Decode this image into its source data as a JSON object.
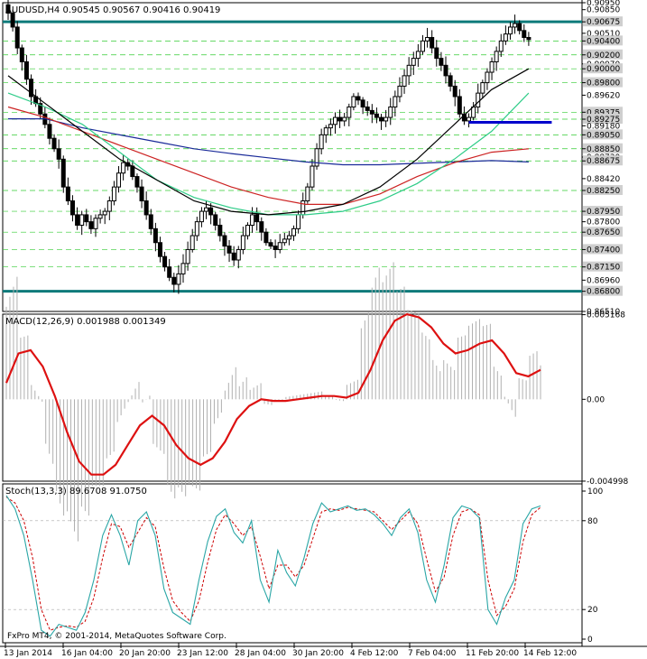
{
  "header": {
    "symbol": "AUDUSD,H4",
    "ohlc": "0.90545 0.90567 0.90416 0.90419"
  },
  "copyright": "FxPro MT4, © 2001-2014, MetaQuotes Software Corp.",
  "chart_data": [
    {
      "type": "candlestick",
      "panel": "price",
      "title": "AUDUSD,H4 0.90545 0.90567 0.90416 0.90419",
      "x_tick_labels": [
        "13 Jan 2014",
        "16 Jan 04:00",
        "20 Jan 20:00",
        "23 Jan 12:00",
        "28 Jan 04:00",
        "30 Jan 20:00",
        "4 Feb 12:00",
        "7 Feb 04:00",
        "11 Feb 20:00",
        "14 Feb 12:00"
      ],
      "y_labels": [
        "0.90950",
        "0.90850",
        "0.90675",
        "0.90510",
        "0.90400",
        "0.90200",
        "0.90070",
        "0.90000",
        "0.89800",
        "0.89620",
        "0.89375",
        "0.89275",
        "0.89180",
        "0.89050",
        "0.88850",
        "0.88730",
        "0.88675",
        "0.88420",
        "0.88250",
        "0.87950",
        "0.87800",
        "0.87650",
        "0.87400",
        "0.87150",
        "0.86960",
        "0.86800",
        "0.86510"
      ],
      "highlighted_levels": [
        "0.90675",
        "0.90400",
        "0.90200",
        "0.90000",
        "0.89800",
        "0.89375",
        "0.89275",
        "0.89050",
        "0.88850",
        "0.88675",
        "0.88250",
        "0.87950",
        "0.87650",
        "0.87400",
        "0.87150",
        "0.86800"
      ],
      "ylim": [
        0.8651,
        0.9095
      ],
      "horizontal_lines": [
        {
          "value": 0.90675,
          "color": "#0e7a7a"
        },
        {
          "value": 0.868,
          "color": "#0e7a7a"
        }
      ],
      "support_segment": {
        "value": 0.8923,
        "from_bar": 100,
        "to_bar": 118,
        "color": "#0000cc"
      },
      "close_approx": [
        0.908,
        0.906,
        0.903,
        0.901,
        0.8985,
        0.896,
        0.895,
        0.8935,
        0.892,
        0.89,
        0.8885,
        0.887,
        0.883,
        0.881,
        0.879,
        0.8775,
        0.879,
        0.878,
        0.877,
        0.8785,
        0.879,
        0.8795,
        0.881,
        0.883,
        0.885,
        0.8865,
        0.886,
        0.8845,
        0.883,
        0.881,
        0.879,
        0.877,
        0.875,
        0.873,
        0.8715,
        0.87,
        0.869,
        0.8705,
        0.872,
        0.874,
        0.876,
        0.878,
        0.8795,
        0.88,
        0.879,
        0.8775,
        0.876,
        0.8745,
        0.8735,
        0.8725,
        0.874,
        0.876,
        0.8775,
        0.879,
        0.878,
        0.8765,
        0.875,
        0.8745,
        0.874,
        0.875,
        0.8755,
        0.876,
        0.877,
        0.879,
        0.881,
        0.883,
        0.886,
        0.8885,
        0.8905,
        0.8915,
        0.892,
        0.893,
        0.8925,
        0.893,
        0.8945,
        0.896,
        0.8955,
        0.8945,
        0.894,
        0.8935,
        0.893,
        0.8925,
        0.893,
        0.8945,
        0.896,
        0.8975,
        0.899,
        0.9005,
        0.9015,
        0.9025,
        0.904,
        0.9045,
        0.903,
        0.9015,
        0.9005,
        0.899,
        0.8975,
        0.896,
        0.8935,
        0.8925,
        0.893,
        0.8945,
        0.8965,
        0.898,
        0.8995,
        0.901,
        0.9025,
        0.904,
        0.905,
        0.906,
        0.9065,
        0.9055,
        0.9045,
        0.9042
      ],
      "sma_black": [
        0.899,
        0.895,
        0.891,
        0.887,
        0.884,
        0.881,
        0.8795,
        0.879,
        0.8795,
        0.8805,
        0.883,
        0.887,
        0.892,
        0.897,
        0.9
      ],
      "sma_green": [
        0.8965,
        0.8945,
        0.892,
        0.888,
        0.884,
        0.8815,
        0.88,
        0.879,
        0.879,
        0.8795,
        0.881,
        0.8835,
        0.887,
        0.891,
        0.8965
      ],
      "sma_red": [
        0.8945,
        0.893,
        0.891,
        0.889,
        0.887,
        0.885,
        0.883,
        0.8815,
        0.8805,
        0.8805,
        0.882,
        0.8845,
        0.8865,
        0.888,
        0.8885
      ],
      "sma_blue": [
        0.8928,
        0.8928,
        0.8915,
        0.8905,
        0.8895,
        0.8885,
        0.8878,
        0.8872,
        0.8866,
        0.8862,
        0.8862,
        0.8864,
        0.8866,
        0.8868,
        0.8866
      ]
    },
    {
      "type": "bar+line",
      "panel": "macd",
      "title": "MACD(12,26,9) 0.001988 0.001349",
      "y_labels": [
        "0.005168",
        "0.00",
        "-0.004998"
      ],
      "ylim": [
        -0.005,
        0.0052
      ],
      "signal_line": [
        0.001,
        0.0028,
        0.003,
        0.002,
        0.0002,
        -0.002,
        -0.0038,
        -0.0046,
        -0.0046,
        -0.004,
        -0.0028,
        -0.0016,
        -0.001,
        -0.0016,
        -0.0028,
        -0.0036,
        -0.004,
        -0.0036,
        -0.0026,
        -0.0012,
        -0.0004,
        0.0,
        -0.0001,
        -0.0001,
        0.0,
        0.0001,
        0.0002,
        0.0002,
        0.0001,
        0.0004,
        0.0018,
        0.0036,
        0.0048,
        0.0052,
        0.005,
        0.0044,
        0.0034,
        0.0028,
        0.003,
        0.0034,
        0.0036,
        0.0028,
        0.0016,
        0.0014,
        0.0018
      ]
    },
    {
      "type": "line",
      "panel": "stochastic",
      "title": "Stoch(13,3,3) 89.6708 91.0750",
      "y_labels": [
        "100",
        "80",
        "20",
        "0"
      ],
      "ylim": [
        0,
        100
      ],
      "main_line": [
        97,
        88,
        70,
        40,
        6,
        2,
        10,
        8,
        6,
        18,
        40,
        70,
        84,
        70,
        50,
        80,
        86,
        70,
        34,
        18,
        14,
        10,
        40,
        66,
        83,
        88,
        72,
        65,
        80,
        40,
        25,
        60,
        45,
        36,
        55,
        78,
        92,
        86,
        88,
        90,
        87,
        88,
        84,
        78,
        70,
        82,
        88,
        72,
        40,
        25,
        50,
        82,
        90,
        88,
        82,
        20,
        10,
        28,
        40,
        78,
        88,
        90
      ],
      "signal_line": [
        96,
        92,
        80,
        55,
        20,
        6,
        8,
        9,
        8,
        12,
        28,
        55,
        78,
        76,
        62,
        72,
        82,
        76,
        48,
        26,
        18,
        12,
        26,
        52,
        74,
        84,
        78,
        70,
        76,
        56,
        34,
        50,
        50,
        42,
        50,
        68,
        86,
        88,
        87,
        89,
        88,
        87,
        86,
        80,
        74,
        80,
        86,
        78,
        54,
        32,
        42,
        70,
        86,
        88,
        84,
        40,
        16,
        22,
        34,
        66,
        84,
        89
      ]
    }
  ],
  "colors": {
    "background": "#ffffff",
    "candle": "#000000",
    "grid_levels": "#33cc33",
    "major_lines": "#0e7a7a",
    "support_line": "#0000cc",
    "sma_black": "#000000",
    "sma_green": "#2ecc88",
    "sma_red": "#cc2222",
    "sma_blue": "#1a2a99",
    "macd_hist": "#b0b0b0",
    "macd_signal": "#dd1111",
    "stoch_main": "#2aa6a6",
    "stoch_signal": "#cc0000"
  }
}
